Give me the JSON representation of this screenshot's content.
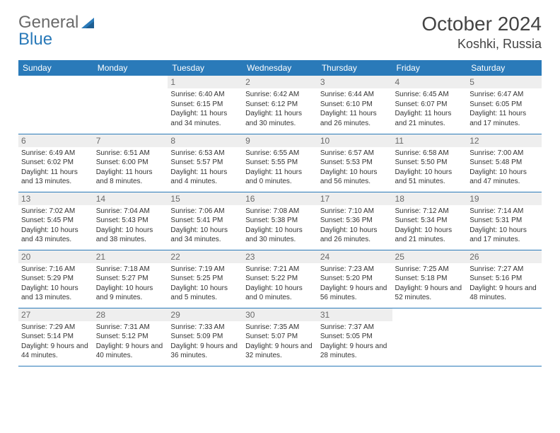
{
  "brand": {
    "word1": "General",
    "word2": "Blue",
    "word1_color": "#6a6a6a",
    "word2_color": "#2a7ab9"
  },
  "title": "October 2024",
  "location": "Koshki, Russia",
  "colors": {
    "header_bg": "#2a7ab9",
    "header_fg": "#ffffff",
    "daynum_bg": "#eeeeee",
    "daynum_fg": "#6a6a6a",
    "border": "#2a7ab9",
    "page_bg": "#ffffff",
    "body_text": "#333333"
  },
  "weekdays": [
    "Sunday",
    "Monday",
    "Tuesday",
    "Wednesday",
    "Thursday",
    "Friday",
    "Saturday"
  ],
  "weeks": [
    [
      null,
      null,
      {
        "n": "1",
        "sr": "6:40 AM",
        "ss": "6:15 PM",
        "dl": "11 hours and 34 minutes."
      },
      {
        "n": "2",
        "sr": "6:42 AM",
        "ss": "6:12 PM",
        "dl": "11 hours and 30 minutes."
      },
      {
        "n": "3",
        "sr": "6:44 AM",
        "ss": "6:10 PM",
        "dl": "11 hours and 26 minutes."
      },
      {
        "n": "4",
        "sr": "6:45 AM",
        "ss": "6:07 PM",
        "dl": "11 hours and 21 minutes."
      },
      {
        "n": "5",
        "sr": "6:47 AM",
        "ss": "6:05 PM",
        "dl": "11 hours and 17 minutes."
      }
    ],
    [
      {
        "n": "6",
        "sr": "6:49 AM",
        "ss": "6:02 PM",
        "dl": "11 hours and 13 minutes."
      },
      {
        "n": "7",
        "sr": "6:51 AM",
        "ss": "6:00 PM",
        "dl": "11 hours and 8 minutes."
      },
      {
        "n": "8",
        "sr": "6:53 AM",
        "ss": "5:57 PM",
        "dl": "11 hours and 4 minutes."
      },
      {
        "n": "9",
        "sr": "6:55 AM",
        "ss": "5:55 PM",
        "dl": "11 hours and 0 minutes."
      },
      {
        "n": "10",
        "sr": "6:57 AM",
        "ss": "5:53 PM",
        "dl": "10 hours and 56 minutes."
      },
      {
        "n": "11",
        "sr": "6:58 AM",
        "ss": "5:50 PM",
        "dl": "10 hours and 51 minutes."
      },
      {
        "n": "12",
        "sr": "7:00 AM",
        "ss": "5:48 PM",
        "dl": "10 hours and 47 minutes."
      }
    ],
    [
      {
        "n": "13",
        "sr": "7:02 AM",
        "ss": "5:45 PM",
        "dl": "10 hours and 43 minutes."
      },
      {
        "n": "14",
        "sr": "7:04 AM",
        "ss": "5:43 PM",
        "dl": "10 hours and 38 minutes."
      },
      {
        "n": "15",
        "sr": "7:06 AM",
        "ss": "5:41 PM",
        "dl": "10 hours and 34 minutes."
      },
      {
        "n": "16",
        "sr": "7:08 AM",
        "ss": "5:38 PM",
        "dl": "10 hours and 30 minutes."
      },
      {
        "n": "17",
        "sr": "7:10 AM",
        "ss": "5:36 PM",
        "dl": "10 hours and 26 minutes."
      },
      {
        "n": "18",
        "sr": "7:12 AM",
        "ss": "5:34 PM",
        "dl": "10 hours and 21 minutes."
      },
      {
        "n": "19",
        "sr": "7:14 AM",
        "ss": "5:31 PM",
        "dl": "10 hours and 17 minutes."
      }
    ],
    [
      {
        "n": "20",
        "sr": "7:16 AM",
        "ss": "5:29 PM",
        "dl": "10 hours and 13 minutes."
      },
      {
        "n": "21",
        "sr": "7:18 AM",
        "ss": "5:27 PM",
        "dl": "10 hours and 9 minutes."
      },
      {
        "n": "22",
        "sr": "7:19 AM",
        "ss": "5:25 PM",
        "dl": "10 hours and 5 minutes."
      },
      {
        "n": "23",
        "sr": "7:21 AM",
        "ss": "5:22 PM",
        "dl": "10 hours and 0 minutes."
      },
      {
        "n": "24",
        "sr": "7:23 AM",
        "ss": "5:20 PM",
        "dl": "9 hours and 56 minutes."
      },
      {
        "n": "25",
        "sr": "7:25 AM",
        "ss": "5:18 PM",
        "dl": "9 hours and 52 minutes."
      },
      {
        "n": "26",
        "sr": "7:27 AM",
        "ss": "5:16 PM",
        "dl": "9 hours and 48 minutes."
      }
    ],
    [
      {
        "n": "27",
        "sr": "7:29 AM",
        "ss": "5:14 PM",
        "dl": "9 hours and 44 minutes."
      },
      {
        "n": "28",
        "sr": "7:31 AM",
        "ss": "5:12 PM",
        "dl": "9 hours and 40 minutes."
      },
      {
        "n": "29",
        "sr": "7:33 AM",
        "ss": "5:09 PM",
        "dl": "9 hours and 36 minutes."
      },
      {
        "n": "30",
        "sr": "7:35 AM",
        "ss": "5:07 PM",
        "dl": "9 hours and 32 minutes."
      },
      {
        "n": "31",
        "sr": "7:37 AM",
        "ss": "5:05 PM",
        "dl": "9 hours and 28 minutes."
      },
      null,
      null
    ]
  ],
  "labels": {
    "sunrise": "Sunrise:",
    "sunset": "Sunset:",
    "daylight": "Daylight:"
  }
}
